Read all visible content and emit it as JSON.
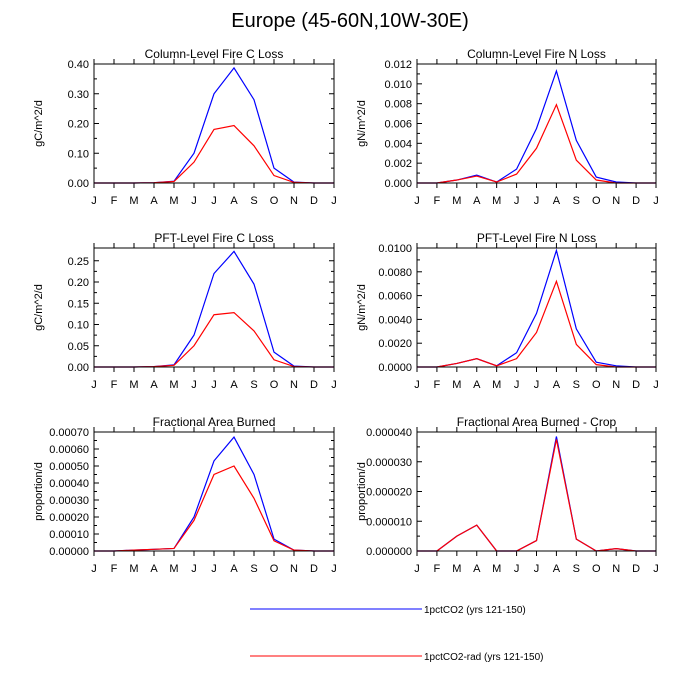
{
  "title": "Europe (45-60N,10W-30E)",
  "legend": [
    {
      "name": "1pctCO2 (yrs 121-150)",
      "color": "#0000ff"
    },
    {
      "name": "1pctCO2-rad (yrs 121-150)",
      "color": "#ff0000"
    }
  ],
  "chart_data": [
    {
      "type": "line",
      "title": "Column-Level Fire C Loss",
      "ylabel": "gC/m^2/d",
      "xlabel": "",
      "categories": [
        "J",
        "F",
        "M",
        "A",
        "M",
        "J",
        "J",
        "A",
        "S",
        "O",
        "N",
        "D",
        "J"
      ],
      "ylim": [
        0,
        0.4
      ],
      "yticks": [
        "0.00",
        "0.10",
        "0.20",
        "0.30",
        "0.40"
      ],
      "series": [
        {
          "name": "1pctCO2 (yrs 121-150)",
          "color": "#0000ff",
          "values": [
            0.0,
            0.0,
            0.0,
            0.001,
            0.006,
            0.1,
            0.3,
            0.387,
            0.28,
            0.05,
            0.003,
            0.0,
            0.0
          ]
        },
        {
          "name": "1pctCO2-rad (yrs 121-150)",
          "color": "#ff0000",
          "values": [
            0.0,
            0.0,
            0.0,
            0.001,
            0.005,
            0.07,
            0.18,
            0.193,
            0.125,
            0.025,
            0.002,
            0.0,
            0.0
          ]
        }
      ]
    },
    {
      "type": "line",
      "title": "Column-Level Fire N Loss",
      "ylabel": "gN/m^2/d",
      "xlabel": "",
      "categories": [
        "J",
        "F",
        "M",
        "A",
        "M",
        "J",
        "J",
        "A",
        "S",
        "O",
        "N",
        "D",
        "J"
      ],
      "ylim": [
        0,
        0.012
      ],
      "yticks": [
        "0.000",
        "0.002",
        "0.004",
        "0.006",
        "0.008",
        "0.010",
        "0.012"
      ],
      "series": [
        {
          "name": "1pctCO2 (yrs 121-150)",
          "color": "#0000ff",
          "values": [
            0.0,
            0.0,
            0.0003,
            0.0008,
            0.0001,
            0.0014,
            0.0055,
            0.0113,
            0.0043,
            0.0006,
            0.0001,
            0.0,
            0.0
          ]
        },
        {
          "name": "1pctCO2-rad (yrs 121-150)",
          "color": "#ff0000",
          "values": [
            0.0,
            0.0,
            0.0003,
            0.0007,
            0.0001,
            0.0009,
            0.0035,
            0.0079,
            0.0023,
            0.0003,
            0.0,
            0.0,
            0.0
          ]
        }
      ]
    },
    {
      "type": "line",
      "title": "PFT-Level Fire C Loss",
      "ylabel": "gC/m^2/d",
      "xlabel": "",
      "categories": [
        "J",
        "F",
        "M",
        "A",
        "M",
        "J",
        "J",
        "A",
        "S",
        "O",
        "N",
        "D",
        "J"
      ],
      "ylim": [
        0,
        0.28
      ],
      "yticks": [
        "0.00",
        "0.05",
        "0.10",
        "0.15",
        "0.20",
        "0.25"
      ],
      "ytick_values": [
        0,
        0.05,
        0.1,
        0.15,
        0.2,
        0.25
      ],
      "series": [
        {
          "name": "1pctCO2 (yrs 121-150)",
          "color": "#0000ff",
          "values": [
            0.0,
            0.0,
            0.0,
            0.001,
            0.005,
            0.075,
            0.22,
            0.272,
            0.195,
            0.035,
            0.002,
            0.0,
            0.0
          ]
        },
        {
          "name": "1pctCO2-rad (yrs 121-150)",
          "color": "#ff0000",
          "values": [
            0.0,
            0.0,
            0.0,
            0.001,
            0.004,
            0.05,
            0.123,
            0.128,
            0.085,
            0.017,
            0.001,
            0.0,
            0.0
          ]
        }
      ]
    },
    {
      "type": "line",
      "title": "PFT-Level Fire N Loss",
      "ylabel": "gN/m^2/d",
      "xlabel": "",
      "categories": [
        "J",
        "F",
        "M",
        "A",
        "M",
        "J",
        "J",
        "A",
        "S",
        "O",
        "N",
        "D",
        "J"
      ],
      "ylim": [
        0,
        0.01
      ],
      "yticks": [
        "0.0000",
        "0.0020",
        "0.0040",
        "0.0060",
        "0.0080",
        "0.0100"
      ],
      "series": [
        {
          "name": "1pctCO2 (yrs 121-150)",
          "color": "#0000ff",
          "values": [
            0.0,
            0.0,
            0.0003,
            0.0007,
            0.0001,
            0.0012,
            0.0045,
            0.0098,
            0.0032,
            0.0004,
            0.0001,
            0.0,
            0.0
          ]
        },
        {
          "name": "1pctCO2-rad (yrs 121-150)",
          "color": "#ff0000",
          "values": [
            0.0,
            0.0,
            0.0003,
            0.0007,
            0.0001,
            0.0007,
            0.0029,
            0.0072,
            0.0019,
            0.0002,
            0.0,
            0.0,
            0.0
          ]
        }
      ]
    },
    {
      "type": "line",
      "title": "Fractional Area Burned",
      "ylabel": "proportion/d",
      "xlabel": "",
      "categories": [
        "J",
        "F",
        "M",
        "A",
        "M",
        "J",
        "J",
        "A",
        "S",
        "O",
        "N",
        "D",
        "J"
      ],
      "ylim": [
        0,
        0.0007
      ],
      "yticks": [
        "0.00000",
        "0.00010",
        "0.00020",
        "0.00030",
        "0.00040",
        "0.00050",
        "0.00060",
        "0.00070"
      ],
      "series": [
        {
          "name": "1pctCO2 (yrs 121-150)",
          "color": "#0000ff",
          "values": [
            0.0,
            0.0,
            5e-06,
            1e-05,
            1.5e-05,
            0.0002,
            0.00053,
            0.00067,
            0.00045,
            7e-05,
            5e-06,
            0.0,
            0.0
          ]
        },
        {
          "name": "1pctCO2-rad (yrs 121-150)",
          "color": "#ff0000",
          "values": [
            0.0,
            0.0,
            5e-06,
            1e-05,
            1.5e-05,
            0.00018,
            0.00045,
            0.0005,
            0.00031,
            6e-05,
            5e-06,
            0.0,
            0.0
          ]
        }
      ]
    },
    {
      "type": "line",
      "title": "Fractional Area Burned - Crop",
      "ylabel": "proportion/d",
      "xlabel": "",
      "categories": [
        "J",
        "F",
        "M",
        "A",
        "M",
        "J",
        "J",
        "A",
        "S",
        "O",
        "N",
        "D",
        "J"
      ],
      "ylim": [
        0,
        4e-05
      ],
      "yticks": [
        "0.000000",
        "0.000010",
        "0.000020",
        "0.000030",
        "0.000040"
      ],
      "series": [
        {
          "name": "1pctCO2 (yrs 121-150)",
          "color": "#0000ff",
          "values": [
            0.0,
            0.0,
            5e-06,
            8.7e-06,
            0.0,
            0.0,
            3.5e-06,
            3.85e-05,
            4e-06,
            0.0,
            8e-07,
            0.0,
            0.0
          ]
        },
        {
          "name": "1pctCO2-rad (yrs 121-150)",
          "color": "#ff0000",
          "values": [
            0.0,
            0.0,
            5e-06,
            8.7e-06,
            0.0,
            0.0,
            3.5e-06,
            3.75e-05,
            4e-06,
            0.0,
            8e-07,
            0.0,
            0.0
          ]
        }
      ]
    }
  ]
}
